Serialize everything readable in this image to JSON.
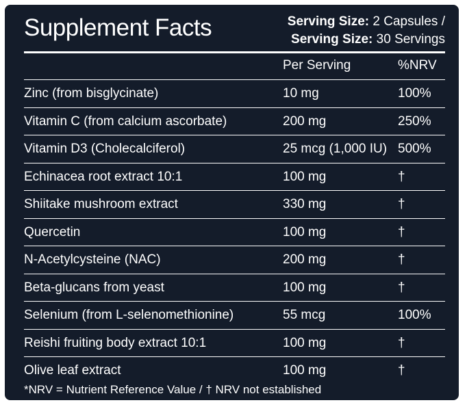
{
  "label": {
    "title": "Supplement Facts",
    "serving_line1_bold": "Serving Size:",
    "serving_line1_value": " 2 Capsules /",
    "serving_line2_bold": "Serving Size:",
    "serving_line2_value": " 30 Servings"
  },
  "table": {
    "headers": {
      "amount": "Per Serving",
      "nrv": "%NRV"
    },
    "rows": [
      {
        "name": "Zinc (from bisglycinate)",
        "amount": "10 mg",
        "nrv": "100%"
      },
      {
        "name": "Vitamin C (from calcium ascorbate)",
        "amount": "200 mg",
        "nrv": "250%"
      },
      {
        "name": "Vitamin D3 (Cholecalciferol)",
        "amount": "25 mcg (1,000 IU)",
        "nrv": "500%"
      },
      {
        "name": "Echinacea root extract 10:1",
        "amount": "100 mg",
        "nrv": "†"
      },
      {
        "name": "Shiitake mushroom extract",
        "amount": "330 mg",
        "nrv": "†"
      },
      {
        "name": "Quercetin",
        "amount": "100 mg",
        "nrv": "†"
      },
      {
        "name": "N-Acetylcysteine (NAC)",
        "amount": "200 mg",
        "nrv": "†"
      },
      {
        "name": "Beta-glucans from yeast",
        "amount": "100 mg",
        "nrv": "†"
      },
      {
        "name": "Selenium (from L-selenomethionine)",
        "amount": "55 mcg",
        "nrv": "100%"
      },
      {
        "name": "Reishi fruiting body extract 10:1",
        "amount": "100 mg",
        "nrv": "†"
      },
      {
        "name": "Olive leaf extract",
        "amount": "100 mg",
        "nrv": "†"
      }
    ]
  },
  "footnote": "*NRV = Nutrient Reference Value / † NRV not established",
  "colors": {
    "background": "#141c2a",
    "text": "#ffffff"
  }
}
